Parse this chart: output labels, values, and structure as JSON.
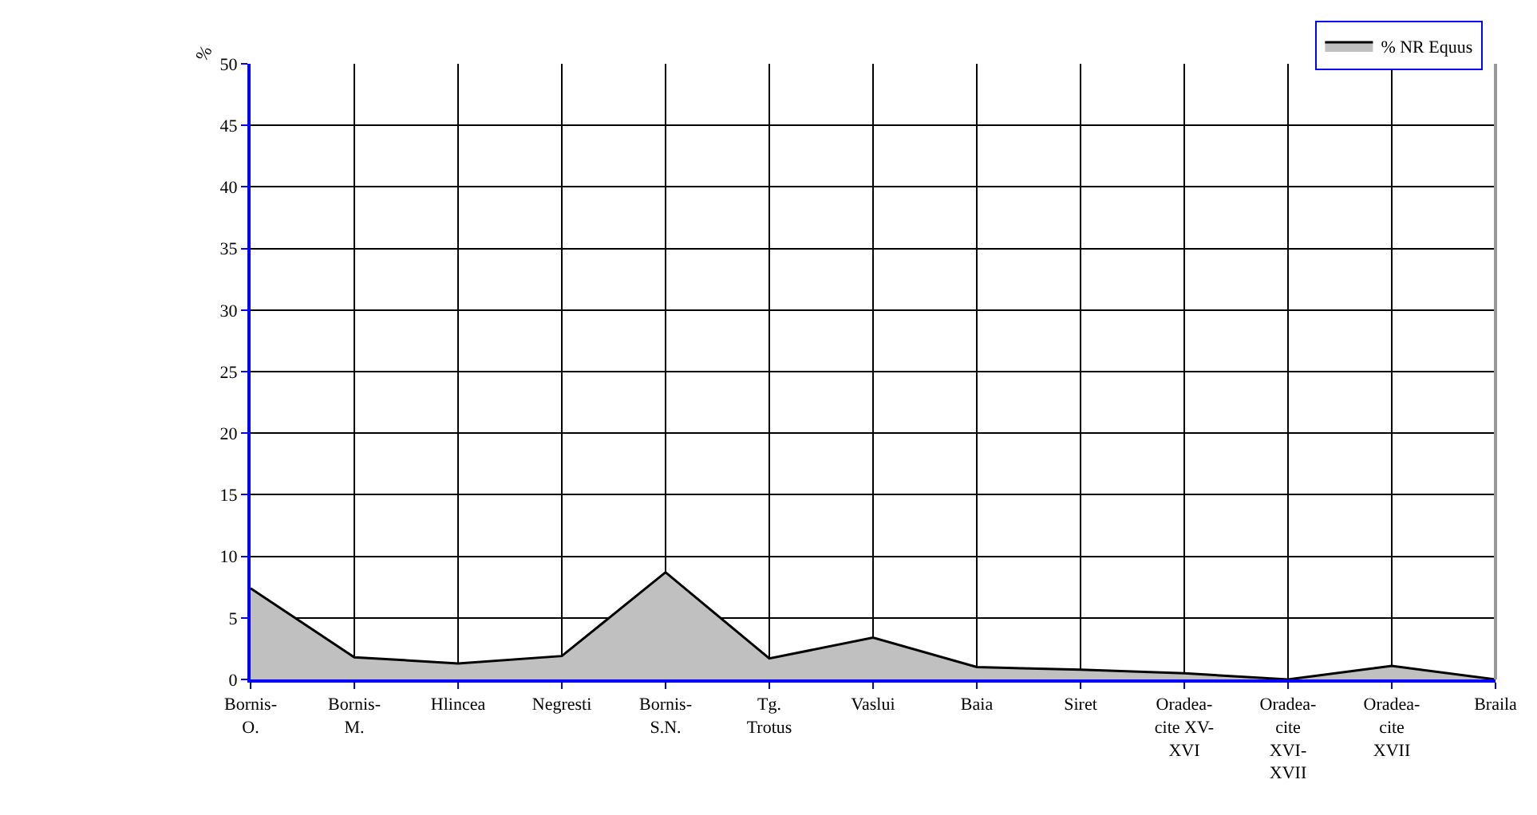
{
  "chart_data": {
    "type": "area",
    "ylabel": "%",
    "categories": [
      "Bornis-\nO.",
      "Bornis-\nM.",
      "Hlincea",
      "Negresti",
      "Bornis-\nS.N.",
      "Tg.\nTrotus",
      "Vaslui",
      "Baia",
      "Siret",
      "Oradea-\ncite XV-\nXVI",
      "Oradea-\ncite\nXVI-\nXVII",
      "Oradea-\ncite\nXVII",
      "Braila"
    ],
    "series": [
      {
        "name": "% NR Equus",
        "color": "#c0c0c0",
        "values": [
          7.4,
          1.8,
          1.3,
          1.9,
          8.7,
          1.7,
          3.4,
          1.0,
          0.8,
          0.5,
          0.0,
          1.1,
          0.0
        ]
      }
    ],
    "ylim": [
      0,
      50
    ],
    "yticks": [
      0,
      5,
      10,
      15,
      20,
      25,
      30,
      35,
      40,
      45,
      50
    ],
    "grid": true,
    "legend": "top right"
  }
}
